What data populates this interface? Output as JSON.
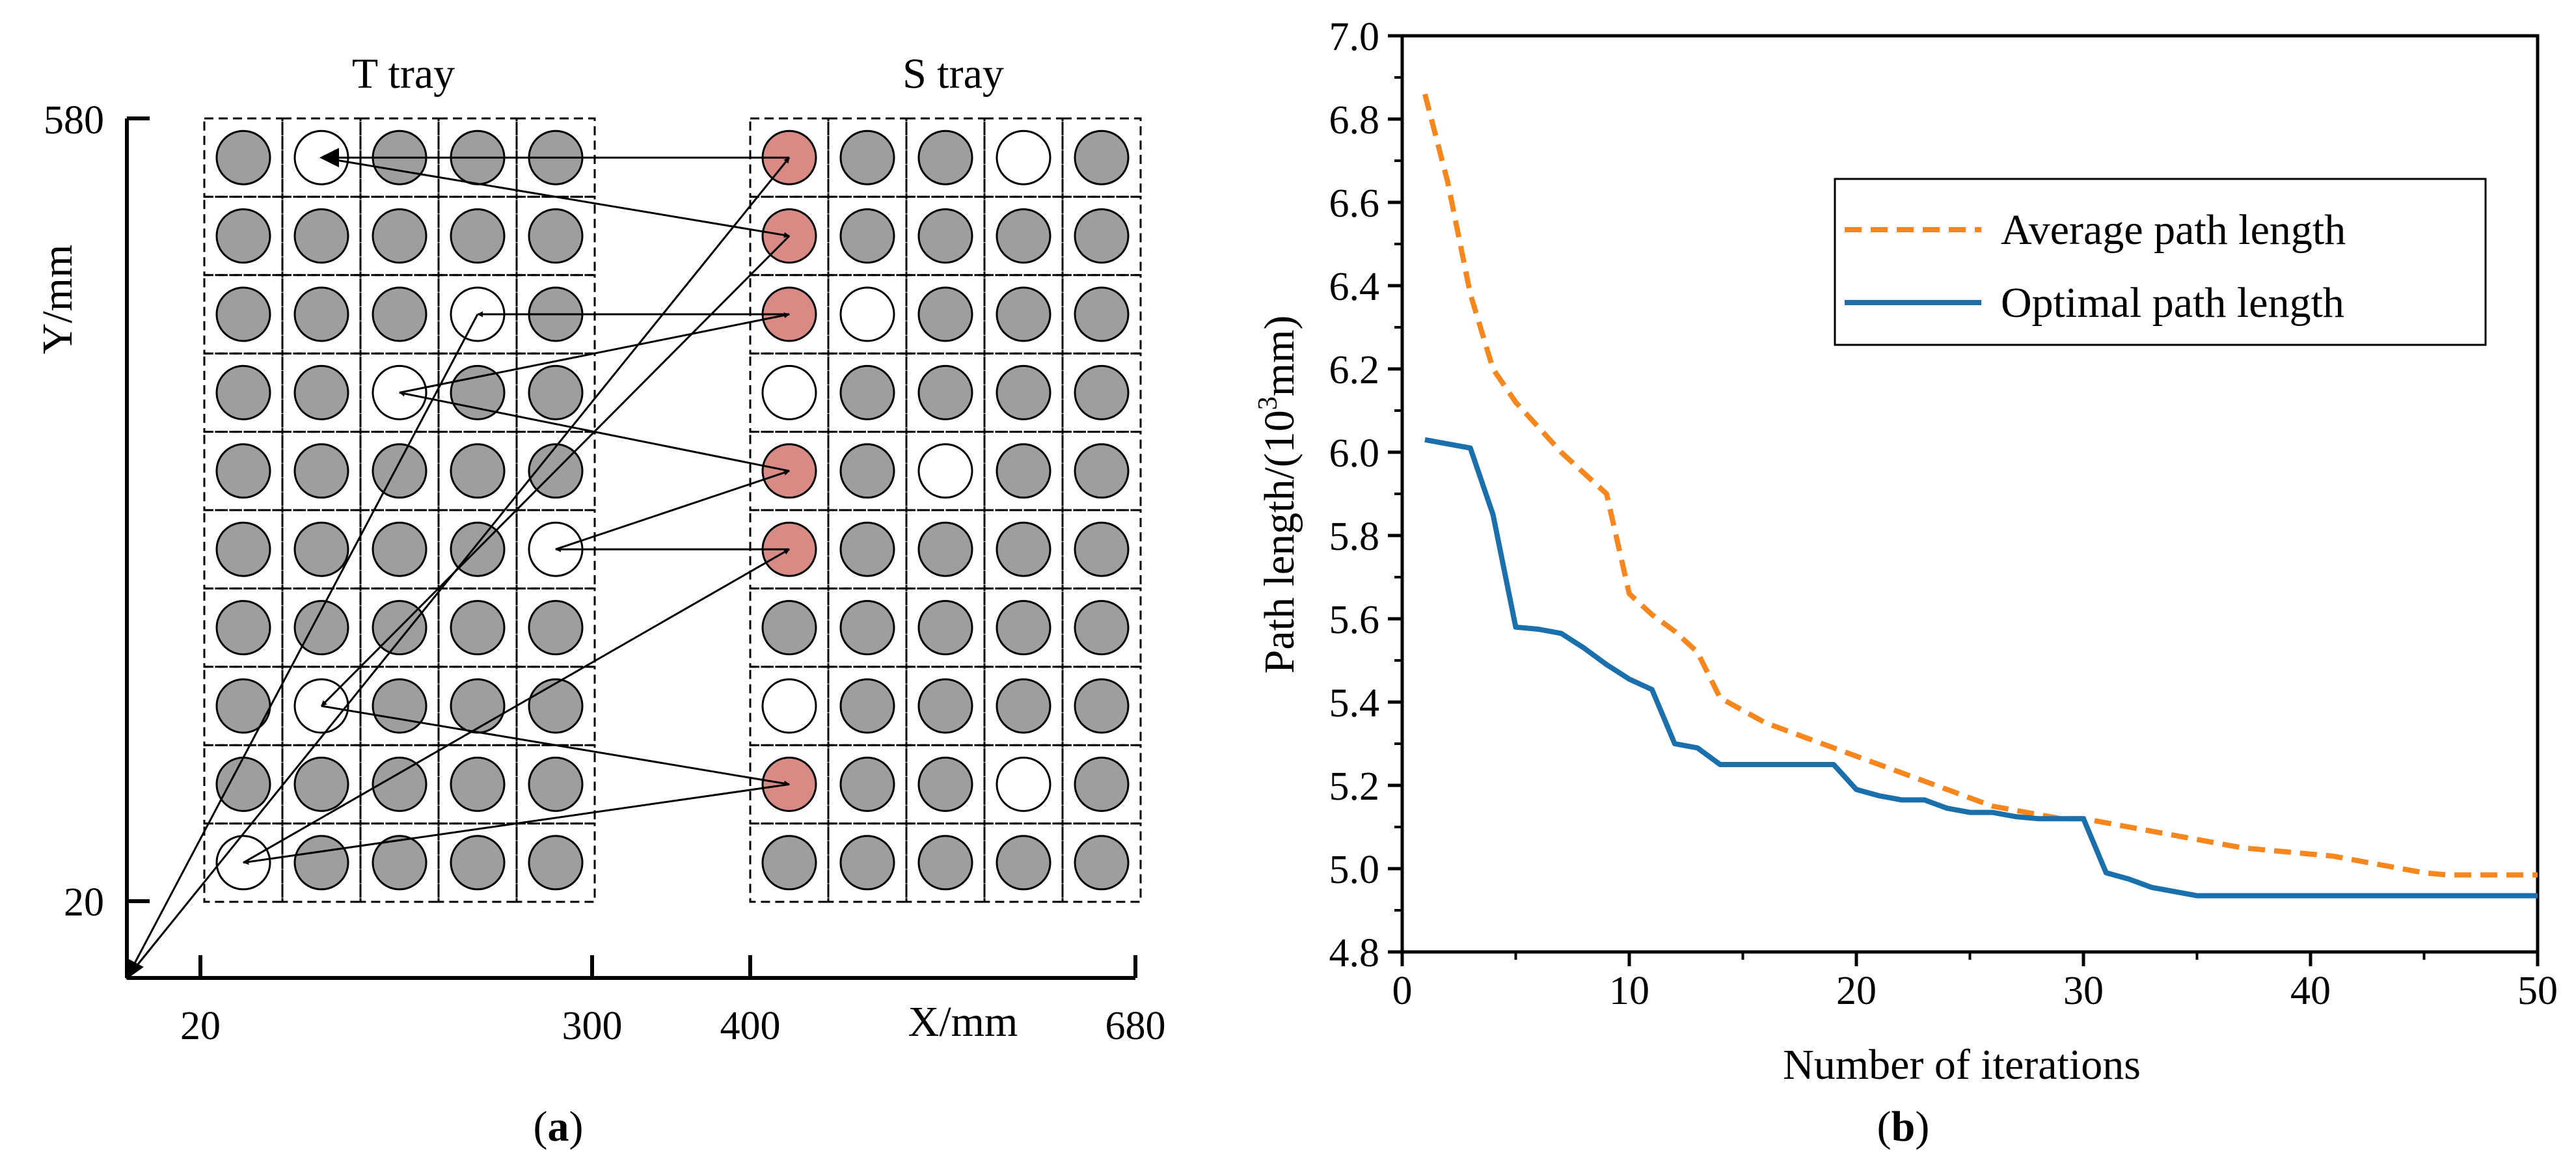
{
  "panel_a": {
    "caption": "a",
    "tray_t_label": "T tray",
    "tray_s_label": "S tray",
    "x_axis_label": "X/mm",
    "y_axis_label": "Y/mm",
    "x_ticks": [
      "20",
      "300",
      "400",
      "680"
    ],
    "y_ticks": [
      "580",
      "20"
    ],
    "colors": {
      "filled": "#9e9e9e",
      "empty": "#ffffff",
      "target": "#d98a85"
    },
    "rows": 10,
    "cols": 5,
    "t_tray_empty": [
      [
        0,
        1
      ],
      [
        2,
        3
      ],
      [
        3,
        2
      ],
      [
        5,
        4
      ],
      [
        7,
        1
      ],
      [
        9,
        0
      ]
    ],
    "s_tray_empty": [
      [
        0,
        3
      ],
      [
        2,
        1
      ],
      [
        3,
        0
      ],
      [
        4,
        2
      ],
      [
        7,
        0
      ],
      [
        8,
        3
      ]
    ],
    "s_tray_target": [
      [
        0,
        0
      ],
      [
        1,
        0
      ],
      [
        2,
        0
      ],
      [
        4,
        0
      ],
      [
        5,
        0
      ],
      [
        8,
        0
      ]
    ]
  },
  "panel_b": {
    "caption": "b",
    "legend": {
      "average": "Average path length",
      "optimal": "Optimal path length"
    }
  },
  "chart_data": {
    "type": "line",
    "title": "",
    "xlabel": "Number of iterations",
    "ylabel": "Path length/(10^3 mm)",
    "ylabel_parts": {
      "pre": "Path length/(10",
      "sup": "3",
      "post": "mm)"
    },
    "xlim": [
      0,
      50
    ],
    "ylim": [
      4.8,
      7.0
    ],
    "x_ticks": [
      0,
      10,
      20,
      30,
      40,
      50
    ],
    "y_ticks": [
      4.8,
      5.0,
      5.2,
      5.4,
      5.6,
      5.8,
      6.0,
      6.2,
      6.4,
      6.6,
      6.8,
      7.0
    ],
    "y_tick_labels": [
      "4.8",
      "5.0",
      "5.2",
      "5.4",
      "5.6",
      "5.8",
      "6.0",
      "6.2",
      "6.4",
      "6.6",
      "6.8",
      "7.0"
    ],
    "series": [
      {
        "name": "Average path length",
        "color": "#f7861c",
        "style": "dashed",
        "x": [
          1,
          2,
          3,
          4,
          5,
          6,
          7,
          8,
          9,
          10,
          11,
          12,
          13,
          14,
          15,
          16,
          17,
          18,
          19,
          20,
          21,
          22,
          23,
          24,
          25,
          26,
          27,
          28,
          29,
          30,
          31,
          32,
          33,
          34,
          35,
          36,
          37,
          38,
          39,
          40,
          41,
          42,
          43,
          44,
          45,
          46,
          47,
          48,
          49,
          50
        ],
        "values": [
          6.86,
          6.65,
          6.38,
          6.2,
          6.12,
          6.06,
          6.0,
          5.95,
          5.9,
          5.66,
          5.61,
          5.57,
          5.52,
          5.41,
          5.38,
          5.35,
          5.33,
          5.31,
          5.29,
          5.27,
          5.25,
          5.23,
          5.21,
          5.19,
          5.17,
          5.15,
          5.14,
          5.13,
          5.12,
          5.12,
          5.11,
          5.1,
          5.09,
          5.08,
          5.07,
          5.06,
          5.05,
          5.045,
          5.04,
          5.035,
          5.03,
          5.02,
          5.01,
          5.0,
          4.99,
          4.985,
          4.985,
          4.985,
          4.985,
          4.985
        ]
      },
      {
        "name": "Optimal path length",
        "color": "#1a6fad",
        "style": "solid",
        "x": [
          1,
          2,
          3,
          4,
          5,
          6,
          7,
          8,
          9,
          10,
          11,
          12,
          13,
          14,
          15,
          16,
          17,
          18,
          19,
          20,
          21,
          22,
          23,
          24,
          25,
          26,
          27,
          28,
          29,
          30,
          31,
          32,
          33,
          34,
          35,
          36,
          37,
          38,
          39,
          40,
          41,
          42,
          43,
          44,
          45,
          46,
          47,
          48,
          49,
          50
        ],
        "values": [
          6.03,
          6.02,
          6.01,
          5.85,
          5.58,
          5.575,
          5.565,
          5.53,
          5.49,
          5.455,
          5.43,
          5.3,
          5.29,
          5.25,
          5.25,
          5.25,
          5.25,
          5.25,
          5.25,
          5.19,
          5.175,
          5.165,
          5.165,
          5.145,
          5.135,
          5.135,
          5.125,
          5.12,
          5.12,
          5.12,
          4.99,
          4.975,
          4.955,
          4.945,
          4.935,
          4.935,
          4.935,
          4.935,
          4.935,
          4.935,
          4.935,
          4.935,
          4.935,
          4.935,
          4.935,
          4.935,
          4.935,
          4.935,
          4.935,
          4.935
        ]
      }
    ]
  }
}
